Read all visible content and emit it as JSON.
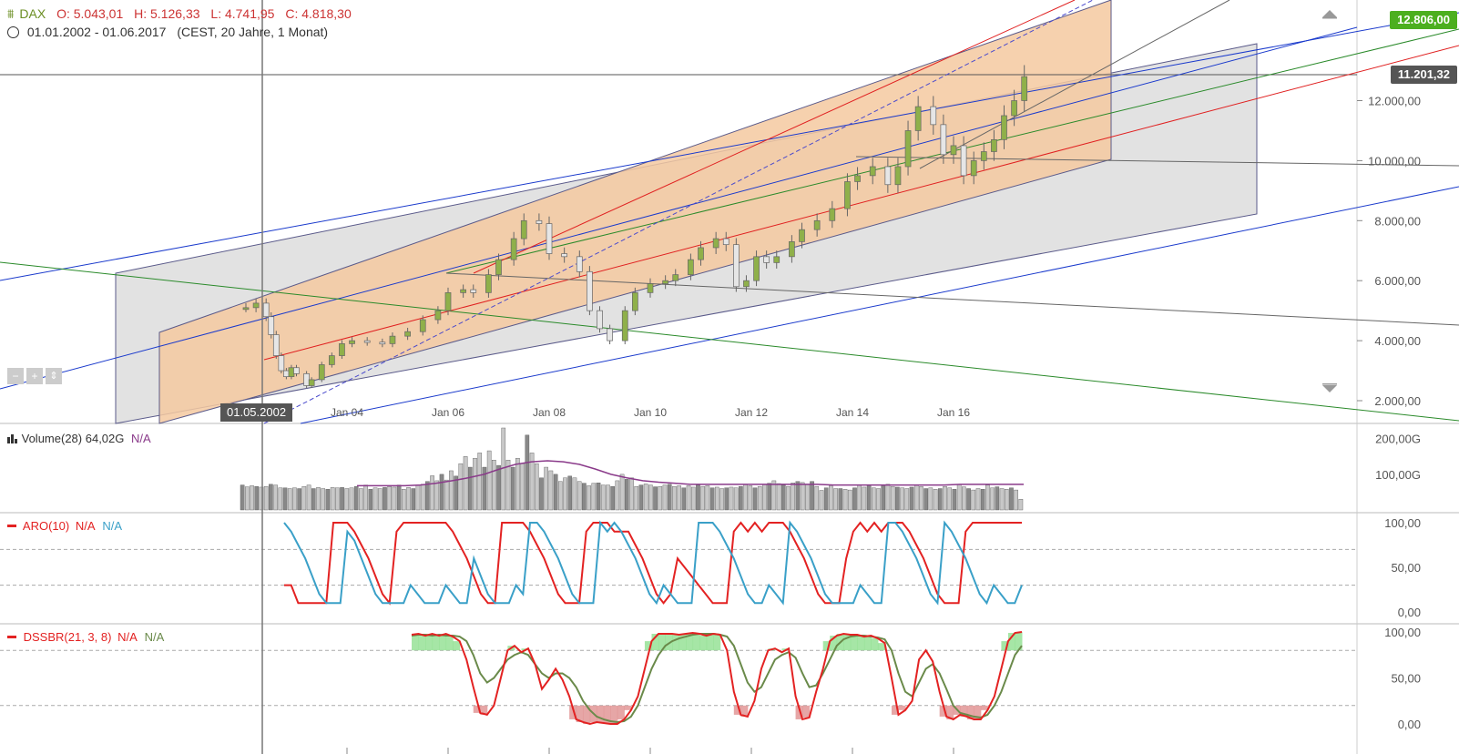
{
  "header": {
    "symbol": "DAX",
    "ohlc": {
      "o": "O: 5.043,01",
      "h": "H: 5.126,33",
      "l": "L: 4.741,95",
      "c": "C: 4.818,30"
    },
    "range": "01.01.2002 - 01.06.2017",
    "range_info": "(CEST, 20 Jahre, 1 Monat)"
  },
  "price_badges": {
    "last": "12.806,00",
    "crosshair": "11.201,32"
  },
  "crosshair_date": "01.05.2002",
  "indicators": {
    "volume": {
      "label": "Volume(28)",
      "value": "64,02G",
      "na": "N/A"
    },
    "aroon": {
      "label": "ARO(10)",
      "na1": "N/A",
      "na2": "N/A"
    },
    "dssbr": {
      "label": "DSSBR(21, 3, 8)",
      "na1": "N/A",
      "na2": "N/A"
    }
  },
  "colors": {
    "up": "#6b8e23",
    "down": "#cc2222",
    "orange_channel": "#f5c9a0",
    "gray_channel": "#d8d8d8",
    "aroon_up": "#e32222",
    "aroon_down": "#3aa0c8",
    "dss_fast": "#e32222",
    "dss_slow": "#6a8a4a",
    "vol_ma": "#8a3a8a"
  },
  "chart_data": [
    {
      "type": "line",
      "title": "DAX",
      "x_tick_labels": [
        "Jan 04",
        "Jan 06",
        "Jan 08",
        "Jan 10",
        "Jan 12",
        "Jan 14",
        "Jan 16"
      ],
      "y_tick_labels": [
        "2.000,00",
        "4.000,00",
        "6.000,00",
        "8.000,00",
        "10.000,00",
        "12.000,00"
      ],
      "ylim": [
        1000,
        12900
      ],
      "xlim": [
        2000.0,
        2028.8
      ],
      "series": [
        {
          "values": [
            [
              2002.0,
              5100
            ],
            [
              2002.2,
              5250
            ],
            [
              2002.4,
              4800
            ],
            [
              2002.5,
              4200
            ],
            [
              2002.6,
              3500
            ],
            [
              2002.7,
              3000
            ],
            [
              2002.8,
              2800
            ],
            [
              2002.9,
              3100
            ],
            [
              2003.0,
              2900
            ],
            [
              2003.2,
              2500
            ],
            [
              2003.3,
              2700
            ],
            [
              2003.5,
              3200
            ],
            [
              2003.7,
              3500
            ],
            [
              2003.9,
              3900
            ],
            [
              2004.1,
              4000
            ],
            [
              2004.4,
              3950
            ],
            [
              2004.7,
              3900
            ],
            [
              2004.9,
              4150
            ],
            [
              2005.2,
              4300
            ],
            [
              2005.5,
              4700
            ],
            [
              2005.8,
              5000
            ],
            [
              2006.0,
              5600
            ],
            [
              2006.3,
              5700
            ],
            [
              2006.5,
              5600
            ],
            [
              2006.8,
              6200
            ],
            [
              2007.0,
              6700
            ],
            [
              2007.3,
              7400
            ],
            [
              2007.5,
              8000
            ],
            [
              2007.8,
              7900
            ],
            [
              2008.0,
              6900
            ],
            [
              2008.3,
              6800
            ],
            [
              2008.6,
              6300
            ],
            [
              2008.8,
              5000
            ],
            [
              2009.0,
              4400
            ],
            [
              2009.2,
              4000
            ],
            [
              2009.5,
              5000
            ],
            [
              2009.7,
              5600
            ],
            [
              2010.0,
              5900
            ],
            [
              2010.3,
              6000
            ],
            [
              2010.5,
              6200
            ],
            [
              2010.8,
              6700
            ],
            [
              2011.0,
              7100
            ],
            [
              2011.3,
              7400
            ],
            [
              2011.5,
              7200
            ],
            [
              2011.7,
              5800
            ],
            [
              2011.9,
              6000
            ],
            [
              2012.1,
              6800
            ],
            [
              2012.3,
              6600
            ],
            [
              2012.5,
              6800
            ],
            [
              2012.8,
              7300
            ],
            [
              2013.0,
              7700
            ],
            [
              2013.3,
              8000
            ],
            [
              2013.6,
              8400
            ],
            [
              2013.9,
              9300
            ],
            [
              2014.1,
              9500
            ],
            [
              2014.4,
              9800
            ],
            [
              2014.7,
              9200
            ],
            [
              2014.9,
              9800
            ],
            [
              2015.1,
              11000
            ],
            [
              2015.3,
              11800
            ],
            [
              2015.6,
              11200
            ],
            [
              2015.8,
              10200
            ],
            [
              2016.0,
              10500
            ],
            [
              2016.2,
              9500
            ],
            [
              2016.4,
              10000
            ],
            [
              2016.6,
              10300
            ],
            [
              2016.8,
              10700
            ],
            [
              2017.0,
              11500
            ],
            [
              2017.2,
              12000
            ],
            [
              2017.4,
              12800
            ]
          ]
        }
      ]
    },
    {
      "type": "bar",
      "title": "Volume(28)",
      "y_tick_labels": [
        "100,00G",
        "200,00G"
      ],
      "ylim": [
        0,
        230
      ],
      "values": [
        70,
        65,
        68,
        66,
        64,
        66,
        72,
        70,
        62,
        62,
        60,
        62,
        60,
        66,
        70,
        60,
        63,
        60,
        58,
        63,
        62,
        63,
        60,
        62,
        66,
        60,
        70,
        58,
        62,
        60,
        63,
        66,
        64,
        70,
        58,
        63,
        60,
        70,
        72,
        80,
        96,
        82,
        100,
        84,
        110,
        95,
        130,
        150,
        120,
        145,
        160,
        120,
        166,
        140,
        125,
        230,
        140,
        120,
        145,
        130,
        210,
        160,
        130,
        90,
        120,
        110,
        100,
        80,
        90,
        95,
        90,
        80,
        75,
        68,
        75,
        76,
        70,
        70,
        66,
        82,
        100,
        86,
        90,
        66,
        70,
        73,
        70,
        65,
        66,
        70,
        72,
        66,
        68,
        62,
        68,
        64,
        70,
        66,
        68,
        62,
        64,
        60,
        62,
        64,
        62,
        66,
        72,
        68,
        62,
        66,
        72,
        75,
        82,
        74,
        70,
        66,
        76,
        80,
        77,
        72,
        80,
        66,
        55,
        62,
        68,
        60,
        60,
        58,
        56,
        62,
        70,
        64,
        68,
        62,
        60,
        68,
        72,
        66,
        64,
        62,
        60,
        64,
        70,
        66,
        60,
        62,
        58,
        60,
        66,
        62,
        58,
        72,
        65,
        60,
        56,
        60,
        58,
        70,
        62,
        65,
        60,
        58,
        62,
        56,
        30
      ],
      "ma_values": [
        68,
        68,
        68,
        68,
        70,
        75,
        82,
        90,
        100,
        115,
        128,
        135,
        138,
        135,
        128,
        115,
        100,
        90,
        82,
        78,
        75,
        72,
        72,
        72,
        72,
        72,
        72,
        72,
        72,
        72,
        70,
        70,
        70,
        70,
        70,
        70,
        70,
        70,
        72,
        72,
        72,
        72,
        72
      ]
    },
    {
      "type": "line",
      "title": "ARO(10)",
      "y_tick_labels": [
        "0,00",
        "50,00",
        "100,00"
      ],
      "ylim": [
        0,
        100
      ],
      "series": [
        {
          "values": [
            30,
            30,
            10,
            10,
            10,
            10,
            10,
            100,
            100,
            100,
            90,
            75,
            60,
            40,
            20,
            10,
            90,
            100,
            100,
            100,
            100,
            100,
            100,
            100,
            90,
            75,
            60,
            40,
            20,
            10,
            10,
            100,
            100,
            100,
            100,
            90,
            75,
            60,
            40,
            20,
            10,
            10,
            10,
            90,
            100,
            100,
            100,
            90,
            90,
            90,
            75,
            60,
            40,
            20,
            10,
            20,
            60,
            50,
            40,
            30,
            20,
            10,
            10,
            10,
            90,
            100,
            90,
            100,
            90,
            100,
            100,
            100,
            90,
            75,
            60,
            40,
            20,
            10,
            10,
            10,
            60,
            90,
            100,
            90,
            100,
            90,
            100,
            100,
            100,
            90,
            75,
            60,
            40,
            20,
            10,
            10,
            10,
            90,
            100,
            100,
            100,
            100,
            100,
            100,
            100,
            100
          ]
        },
        {
          "values": [
            100,
            90,
            75,
            60,
            40,
            20,
            10,
            10,
            10,
            90,
            80,
            60,
            40,
            20,
            10,
            10,
            10,
            10,
            30,
            20,
            10,
            10,
            10,
            30,
            20,
            10,
            10,
            60,
            40,
            20,
            10,
            10,
            10,
            30,
            20,
            100,
            100,
            90,
            75,
            60,
            40,
            20,
            10,
            10,
            10,
            100,
            90,
            100,
            90,
            75,
            60,
            40,
            20,
            10,
            30,
            20,
            10,
            10,
            10,
            100,
            100,
            100,
            90,
            75,
            60,
            40,
            20,
            10,
            10,
            30,
            20,
            10,
            100,
            90,
            75,
            60,
            40,
            20,
            10,
            10,
            10,
            10,
            30,
            20,
            10,
            10,
            100,
            100,
            90,
            75,
            60,
            40,
            20,
            10,
            100,
            90,
            75,
            60,
            40,
            20,
            10,
            30,
            20,
            10,
            10,
            30
          ]
        }
      ]
    },
    {
      "type": "line",
      "title": "DSSBR(21, 3, 8)",
      "y_tick_labels": [
        "0,00",
        "50,00",
        "100,00"
      ],
      "ylim": [
        0,
        100
      ],
      "series": [
        {
          "values": [
            97,
            98,
            96,
            98,
            96,
            98,
            95,
            90,
            70,
            40,
            12,
            10,
            20,
            50,
            80,
            85,
            78,
            82,
            65,
            38,
            48,
            60,
            48,
            30,
            5,
            2,
            0,
            2,
            1,
            0,
            0,
            5,
            15,
            30,
            60,
            90,
            98,
            98,
            98,
            97,
            98,
            99,
            98,
            96,
            98,
            97,
            80,
            35,
            10,
            8,
            25,
            60,
            80,
            82,
            78,
            82,
            30,
            5,
            7,
            35,
            60,
            90,
            96,
            98,
            97,
            97,
            95,
            96,
            93,
            88,
            50,
            10,
            15,
            25,
            70,
            80,
            68,
            35,
            8,
            5,
            10,
            8,
            5,
            5,
            15,
            30,
            60,
            90,
            99,
            100
          ]
        },
        {
          "values": [
            96,
            97,
            97,
            96,
            97,
            96,
            96,
            95,
            90,
            75,
            55,
            45,
            50,
            60,
            70,
            75,
            78,
            75,
            65,
            55,
            50,
            55,
            55,
            50,
            40,
            25,
            15,
            8,
            5,
            3,
            2,
            3,
            8,
            20,
            40,
            60,
            75,
            85,
            90,
            93,
            95,
            97,
            98,
            98,
            98,
            97,
            95,
            85,
            65,
            45,
            35,
            40,
            55,
            70,
            75,
            78,
            72,
            55,
            40,
            42,
            55,
            70,
            85,
            92,
            95,
            96,
            96,
            95,
            94,
            92,
            80,
            55,
            35,
            30,
            45,
            60,
            65,
            55,
            38,
            20,
            12,
            10,
            8,
            7,
            10,
            20,
            35,
            55,
            75,
            85
          ]
        }
      ]
    }
  ]
}
